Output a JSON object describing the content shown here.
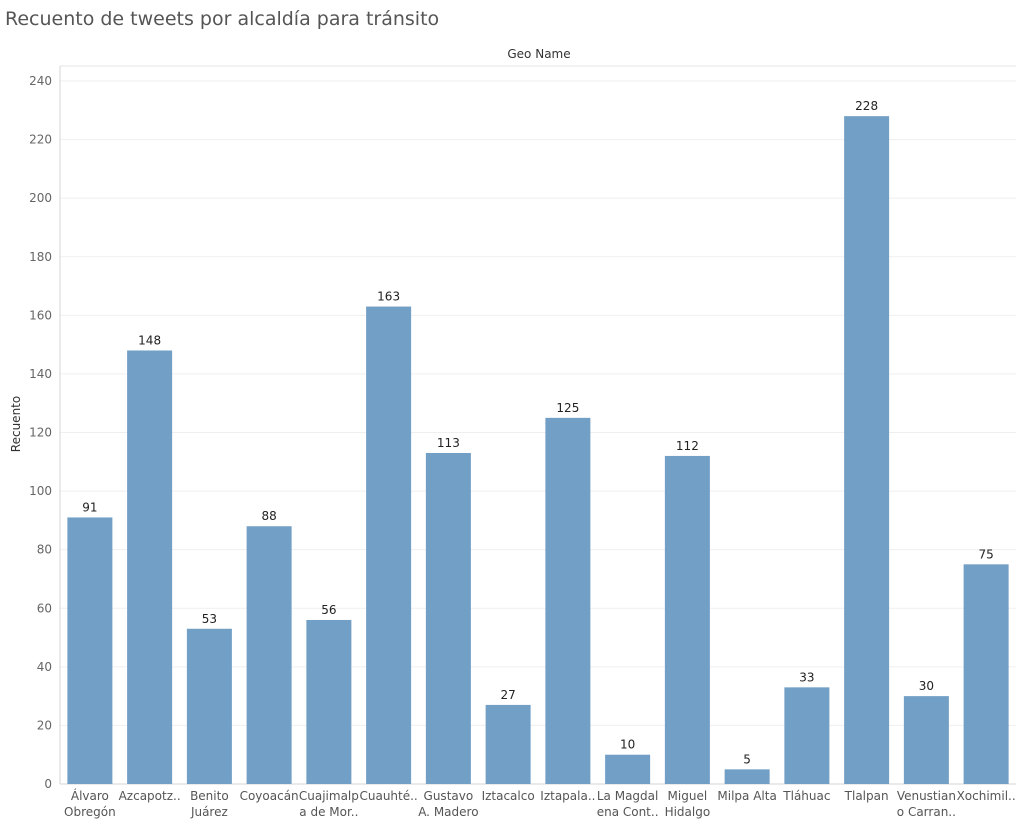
{
  "page": {
    "title": "Recuento de tweets por alcaldía para tránsito"
  },
  "chart_data": {
    "type": "bar",
    "title": "Recuento de tweets por alcaldía para tránsito",
    "column_header": "Geo Name",
    "ylabel": "Recuento",
    "xlabel": "",
    "ylim": [
      0,
      240
    ],
    "yticks": [
      0,
      20,
      40,
      60,
      80,
      100,
      120,
      140,
      160,
      180,
      200,
      220,
      240
    ],
    "grid": true,
    "bar_color": "#729fc5",
    "categories": [
      [
        "Álvaro",
        "Obregón"
      ],
      [
        "Azcapotz.."
      ],
      [
        "Benito",
        "Juárez"
      ],
      [
        "Coyoacán"
      ],
      [
        "Cuajimalp",
        "a de Mor.."
      ],
      [
        "Cuauhté.."
      ],
      [
        "Gustavo",
        "A. Madero"
      ],
      [
        "Iztacalco"
      ],
      [
        "Iztapala.."
      ],
      [
        "La Magdal",
        "ena Cont.."
      ],
      [
        "Miguel",
        "Hidalgo"
      ],
      [
        "Milpa Alta"
      ],
      [
        "Tláhuac"
      ],
      [
        "Tlalpan"
      ],
      [
        "Venustian",
        "o Carran.."
      ],
      [
        "Xochimil.."
      ]
    ],
    "values": [
      91,
      148,
      53,
      88,
      56,
      163,
      113,
      27,
      125,
      10,
      112,
      5,
      33,
      228,
      30,
      75
    ]
  }
}
